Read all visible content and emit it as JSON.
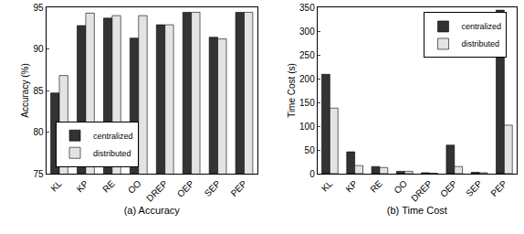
{
  "chart_data": [
    {
      "type": "bar",
      "xlabel": "(a) Accuracy",
      "ylabel": "Accuracy (%)",
      "categories": [
        "KL",
        "KP",
        "RE",
        "OO",
        "DREP",
        "OEP",
        "SEP",
        "PEP"
      ],
      "series": [
        {
          "name": "centralized",
          "color": "#333333",
          "values": [
            84.7,
            92.8,
            93.7,
            91.3,
            92.9,
            94.4,
            91.4,
            94.4
          ]
        },
        {
          "name": "distributed",
          "color": "#e3e3e3",
          "values": [
            86.8,
            94.3,
            94.0,
            94.0,
            92.9,
            94.4,
            91.2,
            94.4
          ]
        }
      ],
      "ylim": [
        75,
        95
      ],
      "yticks": [
        75,
        80,
        85,
        90,
        95
      ],
      "grid": false,
      "legend": "lower left"
    },
    {
      "type": "bar",
      "xlabel": "(b) Time Cost",
      "ylabel": "Time Cost (s)",
      "categories": [
        "KL",
        "KP",
        "RE",
        "OO",
        "DREP",
        "OEP",
        "SEP",
        "PEP"
      ],
      "series": [
        {
          "name": "centralized",
          "color": "#333333",
          "values": [
            209,
            46,
            15,
            5,
            2,
            60,
            3,
            344
          ]
        },
        {
          "name": "distributed",
          "color": "#e3e3e3",
          "values": [
            138,
            17,
            13,
            5,
            1,
            15,
            2,
            102
          ]
        }
      ],
      "ylim": [
        0,
        350
      ],
      "yticks": [
        0,
        50,
        100,
        150,
        200,
        250,
        300,
        350
      ],
      "grid": false,
      "legend": "upper right"
    }
  ]
}
